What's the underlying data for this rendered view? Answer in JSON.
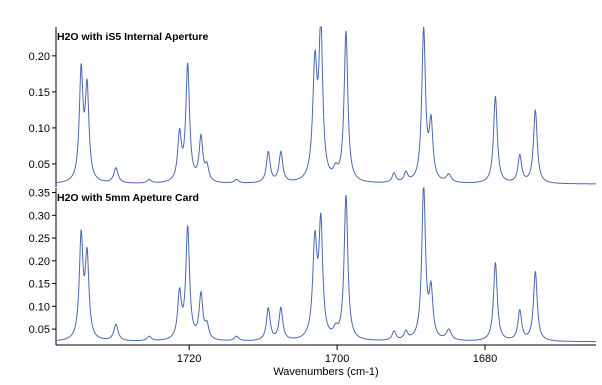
{
  "chart_data": [
    {
      "type": "line",
      "title": "H2O with iS5 Internal Aperture",
      "xlabel": "Wavenumbers (cm-1)",
      "ylabel": "",
      "xlim": [
        1738,
        1665
      ],
      "ylim": [
        0.018,
        0.24
      ],
      "x_ticks": [
        1720,
        1700,
        1680
      ],
      "x_tick_labels": [
        "1720",
        "1700",
        "1680"
      ],
      "y_ticks": [
        0.05,
        0.1,
        0.15,
        0.2
      ],
      "y_tick_labels": [
        "0.05",
        "0.10",
        "0.15",
        "0.20"
      ],
      "baseline": 0.022,
      "line_color": "#4a68b0",
      "peaks": [
        {
          "x": 1734.6,
          "y": 0.173,
          "w": 0.3
        },
        {
          "x": 1733.8,
          "y": 0.149,
          "w": 0.3
        },
        {
          "x": 1729.9,
          "y": 0.043,
          "w": 0.35
        },
        {
          "x": 1725.4,
          "y": 0.027,
          "w": 0.35
        },
        {
          "x": 1721.3,
          "y": 0.087,
          "w": 0.3
        },
        {
          "x": 1720.2,
          "y": 0.184,
          "w": 0.3
        },
        {
          "x": 1718.4,
          "y": 0.083,
          "w": 0.3
        },
        {
          "x": 1717.6,
          "y": 0.042,
          "w": 0.3
        },
        {
          "x": 1713.6,
          "y": 0.027,
          "w": 0.35
        },
        {
          "x": 1709.3,
          "y": 0.065,
          "w": 0.3
        },
        {
          "x": 1707.6,
          "y": 0.064,
          "w": 0.3
        },
        {
          "x": 1703.0,
          "y": 0.18,
          "w": 0.35
        },
        {
          "x": 1702.2,
          "y": 0.23,
          "w": 0.3
        },
        {
          "x": 1700.2,
          "y": 0.035,
          "w": 0.35
        },
        {
          "x": 1698.8,
          "y": 0.231,
          "w": 0.3
        },
        {
          "x": 1692.3,
          "y": 0.035,
          "w": 0.3
        },
        {
          "x": 1690.7,
          "y": 0.035,
          "w": 0.3
        },
        {
          "x": 1688.3,
          "y": 0.233,
          "w": 0.3
        },
        {
          "x": 1687.3,
          "y": 0.1,
          "w": 0.3
        },
        {
          "x": 1684.9,
          "y": 0.033,
          "w": 0.4
        },
        {
          "x": 1678.6,
          "y": 0.143,
          "w": 0.3
        },
        {
          "x": 1675.3,
          "y": 0.06,
          "w": 0.3
        },
        {
          "x": 1673.2,
          "y": 0.124,
          "w": 0.3
        }
      ]
    },
    {
      "type": "line",
      "title": "H2O with 5mm Apeture Card",
      "xlabel": "Wavenumbers (cm-1)",
      "ylabel": "",
      "xlim": [
        1738,
        1665
      ],
      "ylim": [
        0.015,
        0.36
      ],
      "x_ticks": [
        1720,
        1700,
        1680
      ],
      "x_tick_labels": [
        "1720",
        "1700",
        "1680"
      ],
      "y_ticks": [
        0.05,
        0.1,
        0.15,
        0.2,
        0.25,
        0.3,
        0.35
      ],
      "y_tick_labels": [
        "0.05",
        "0.10",
        "0.15",
        "0.20",
        "0.25",
        "0.30",
        "0.35"
      ],
      "baseline": 0.022,
      "line_color": "#4a68b0",
      "peaks": [
        {
          "x": 1734.6,
          "y": 0.245,
          "w": 0.3
        },
        {
          "x": 1733.8,
          "y": 0.202,
          "w": 0.3
        },
        {
          "x": 1729.9,
          "y": 0.058,
          "w": 0.35
        },
        {
          "x": 1725.4,
          "y": 0.032,
          "w": 0.35
        },
        {
          "x": 1721.3,
          "y": 0.122,
          "w": 0.3
        },
        {
          "x": 1720.2,
          "y": 0.268,
          "w": 0.3
        },
        {
          "x": 1718.4,
          "y": 0.12,
          "w": 0.3
        },
        {
          "x": 1717.6,
          "y": 0.052,
          "w": 0.3
        },
        {
          "x": 1713.6,
          "y": 0.032,
          "w": 0.35
        },
        {
          "x": 1709.3,
          "y": 0.093,
          "w": 0.3
        },
        {
          "x": 1707.6,
          "y": 0.093,
          "w": 0.3
        },
        {
          "x": 1703.0,
          "y": 0.233,
          "w": 0.35
        },
        {
          "x": 1702.2,
          "y": 0.268,
          "w": 0.3
        },
        {
          "x": 1700.2,
          "y": 0.04,
          "w": 0.35
        },
        {
          "x": 1698.8,
          "y": 0.34,
          "w": 0.3
        },
        {
          "x": 1692.3,
          "y": 0.042,
          "w": 0.3
        },
        {
          "x": 1690.7,
          "y": 0.04,
          "w": 0.3
        },
        {
          "x": 1688.3,
          "y": 0.36,
          "w": 0.3
        },
        {
          "x": 1687.3,
          "y": 0.125,
          "w": 0.3
        },
        {
          "x": 1684.9,
          "y": 0.045,
          "w": 0.4
        },
        {
          "x": 1678.6,
          "y": 0.195,
          "w": 0.3
        },
        {
          "x": 1675.3,
          "y": 0.088,
          "w": 0.3
        },
        {
          "x": 1673.2,
          "y": 0.175,
          "w": 0.3
        }
      ]
    }
  ]
}
